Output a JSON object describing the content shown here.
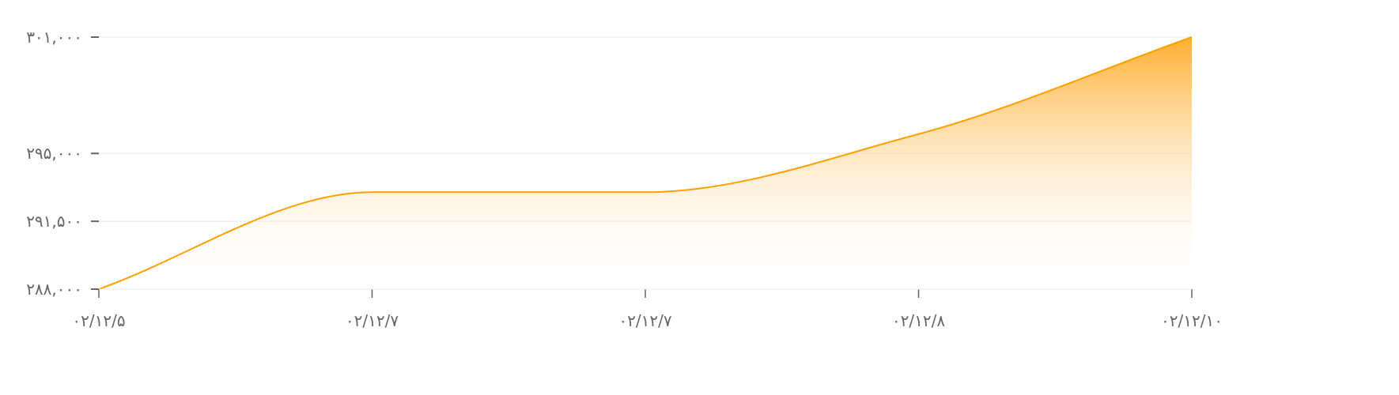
{
  "chart_data": {
    "type": "area",
    "title": "",
    "xlabel": "",
    "ylabel": "",
    "categories": [
      "۰۲/۱۲/۵",
      "۰۲/۱۲/۷",
      "۰۲/۱۲/۷",
      "۰۲/۱۲/۸",
      "۰۲/۱۲/۱۰"
    ],
    "values": [
      288000,
      293000,
      293000,
      296000,
      301000
    ],
    "ylim": [
      288000,
      301000
    ],
    "yticks": [
      288000,
      291500,
      295000,
      301000
    ],
    "ytick_labels": [
      "۲۸۸,۰۰۰",
      "۲۹۱,۵۰۰",
      "۲۹۵,۰۰۰",
      "۳۰۱,۰۰۰"
    ],
    "grid": true,
    "colors": {
      "line": "#FFA000",
      "fill_top": "#FFAA22",
      "fill_bottom": "#FFFFFF",
      "grid": "#E8E8E8",
      "axis": "#666666"
    }
  }
}
